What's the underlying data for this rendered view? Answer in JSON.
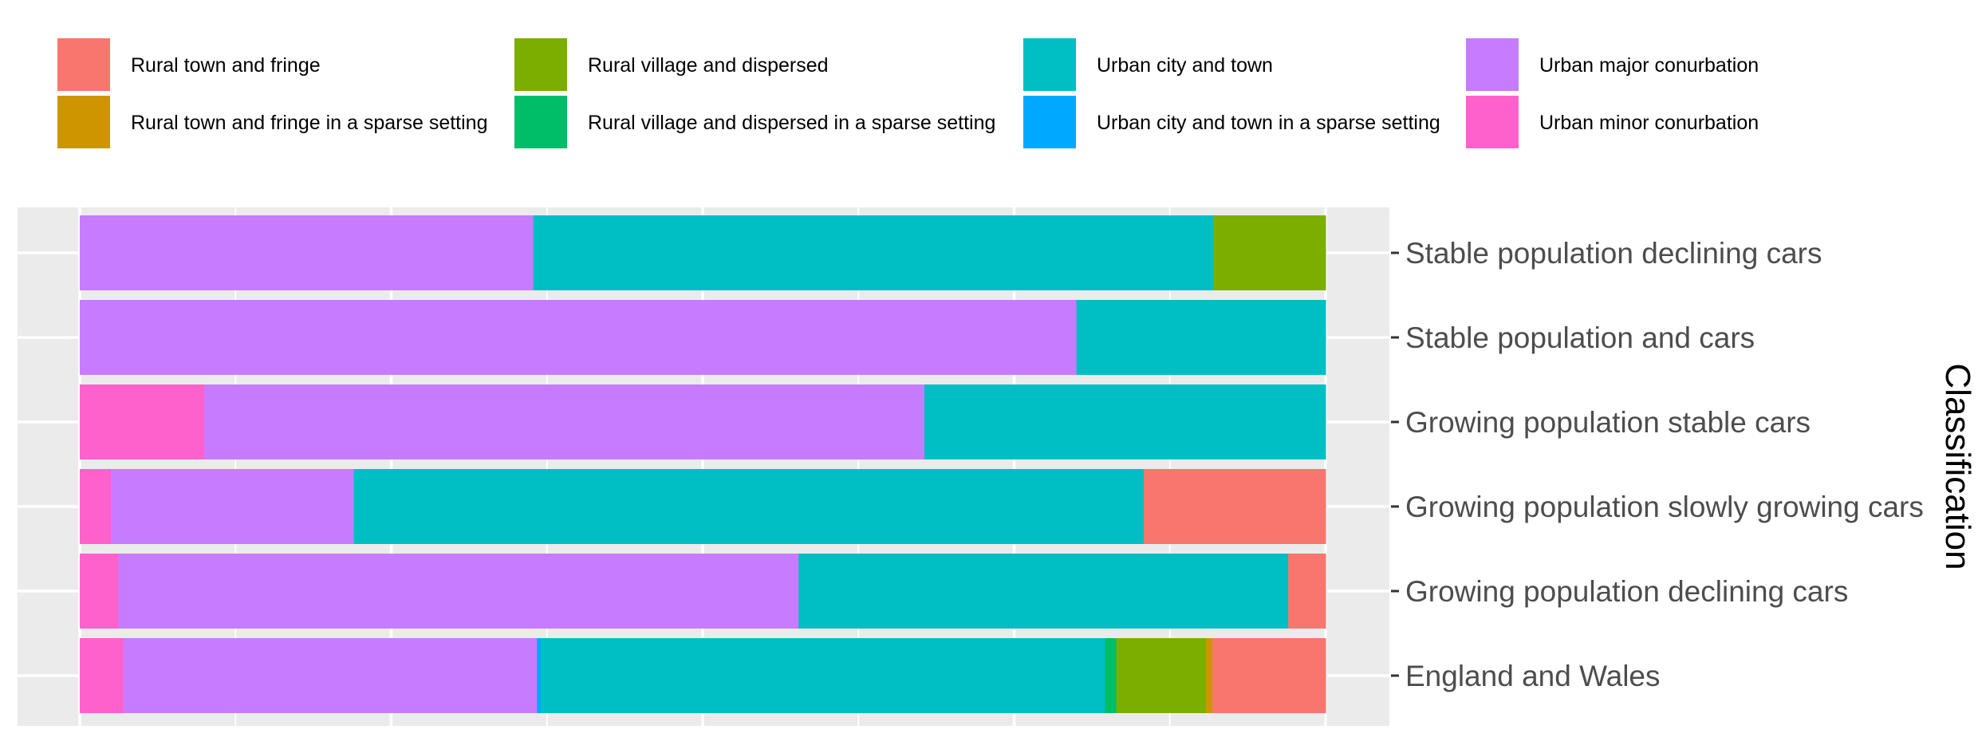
{
  "chart_data": {
    "type": "bar",
    "orientation": "horizontal",
    "stacked": "fill",
    "ylabel": "Classification",
    "axis_position": "right",
    "xlim": [
      0,
      1
    ],
    "grid": true,
    "legend_position": "top",
    "categories": [
      "Stable population declining cars",
      "Stable population and cars",
      "Growing population stable cars",
      "Growing population slowly growing cars",
      "Growing population declining cars",
      "England and Wales"
    ],
    "legend": [
      {
        "name": "Rural town and fringe",
        "color": "#F8766D"
      },
      {
        "name": "Rural town and fringe in a sparse setting",
        "color": "#CD9600"
      },
      {
        "name": "Rural village and dispersed",
        "color": "#7CAE00"
      },
      {
        "name": "Rural village and dispersed in a sparse setting",
        "color": "#00BE67"
      },
      {
        "name": "Urban city and town",
        "color": "#00BFC4"
      },
      {
        "name": "Urban city and town in a sparse setting",
        "color": "#00A9FF"
      },
      {
        "name": "Urban major conurbation",
        "color": "#C77CFF"
      },
      {
        "name": "Urban minor conurbation",
        "color": "#FF61CC"
      }
    ],
    "stack_order": [
      "Urban minor conurbation",
      "Urban major conurbation",
      "Urban city and town in a sparse setting",
      "Urban city and town",
      "Rural village and dispersed in a sparse setting",
      "Rural village and dispersed",
      "Rural town and fringe in a sparse setting",
      "Rural town and fringe"
    ],
    "series": [
      {
        "name": "Urban minor conurbation",
        "color": "#FF61CC",
        "values": [
          0,
          0,
          0.1,
          0.025,
          0.031,
          0.035
        ]
      },
      {
        "name": "Urban major conurbation",
        "color": "#C77CFF",
        "values": [
          0.364,
          0.8,
          0.578,
          0.195,
          0.546,
          0.332
        ]
      },
      {
        "name": "Urban city and town in a sparse setting",
        "color": "#00A9FF",
        "values": [
          0,
          0,
          0,
          0,
          0,
          0.003
        ]
      },
      {
        "name": "Urban city and town",
        "color": "#00BFC4",
        "values": [
          0.546,
          0.2,
          0.322,
          0.634,
          0.393,
          0.453
        ]
      },
      {
        "name": "Rural village and dispersed in a sparse setting",
        "color": "#00BE67",
        "values": [
          0,
          0,
          0,
          0,
          0,
          0.009
        ]
      },
      {
        "name": "Rural village and dispersed",
        "color": "#7CAE00",
        "values": [
          0.09,
          0,
          0,
          0,
          0,
          0.072
        ]
      },
      {
        "name": "Rural town and fringe in a sparse setting",
        "color": "#CD9600",
        "values": [
          0,
          0,
          0,
          0,
          0,
          0.005
        ]
      },
      {
        "name": "Rural town and fringe",
        "color": "#F8766D",
        "values": [
          0,
          0,
          0,
          0.146,
          0.03,
          0.091
        ]
      }
    ]
  }
}
